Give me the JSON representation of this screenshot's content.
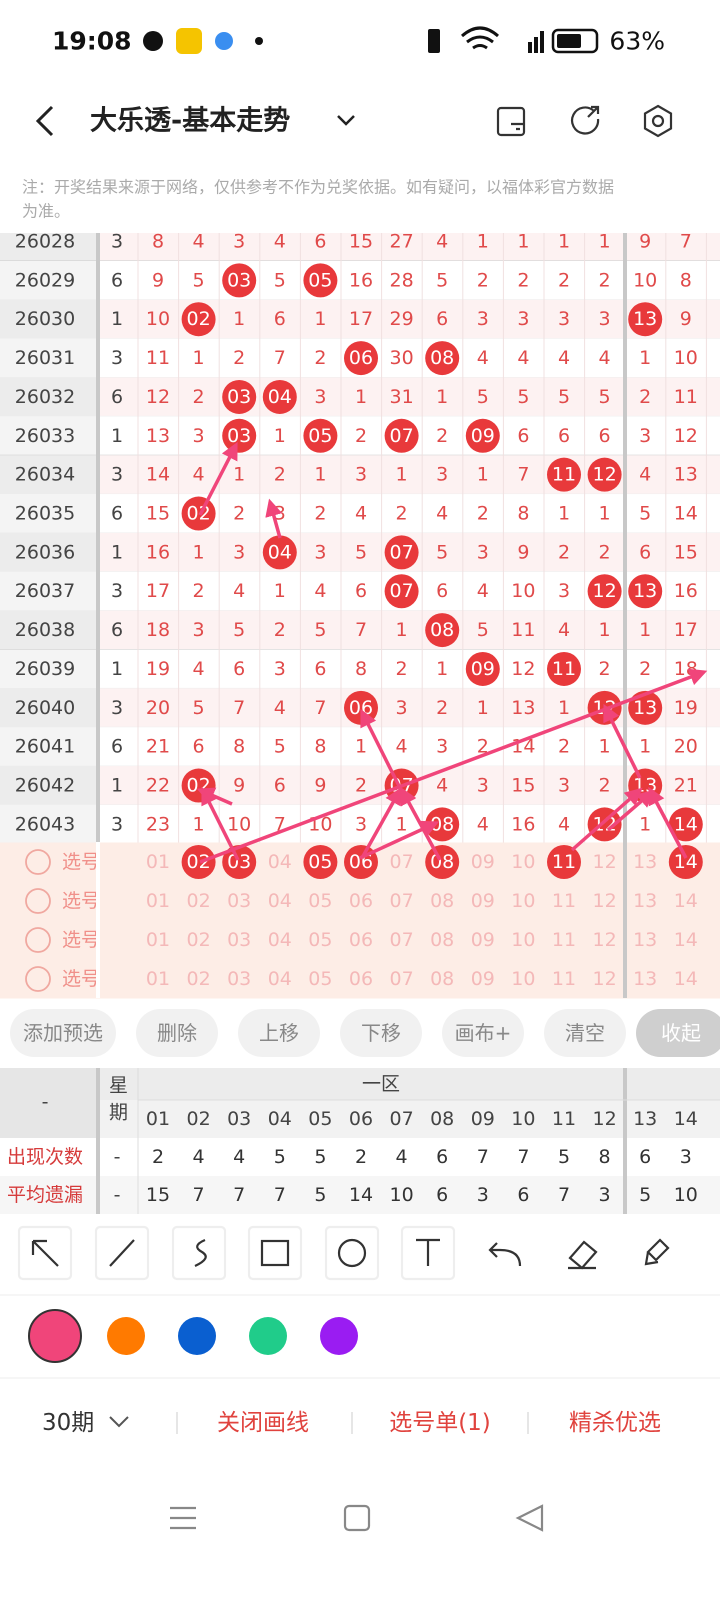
{
  "status_bar": {
    "time": "19:08",
    "battery": "63%"
  },
  "header": {
    "title": "大乐透-基本走势"
  },
  "notice": [
    "注：开奖结果来源于网络，仅供参考不作为兑奖依据。如有疑问，以福体彩官方数据",
    "为准。"
  ],
  "trend_table": {
    "rows": [
      {
        "issue": "26028",
        "weekday": "3",
        "cells": [
          "8",
          "4",
          "3",
          "4",
          "6",
          "15",
          "27",
          "4",
          "1",
          "1",
          "1",
          "1",
          "9",
          "7"
        ]
      },
      {
        "issue": "26029",
        "weekday": "6",
        "cells": [
          "9",
          "5",
          {
            "ball": "03"
          },
          "5",
          {
            "ball": "05"
          },
          "16",
          "28",
          "5",
          "2",
          "2",
          "2",
          "2",
          "10",
          "8"
        ]
      },
      {
        "issue": "26030",
        "weekday": "1",
        "cells": [
          "10",
          {
            "ball": "02"
          },
          "1",
          "6",
          "1",
          "17",
          "29",
          "6",
          "3",
          "3",
          "3",
          "3",
          {
            "ball": "13"
          },
          "9"
        ]
      },
      {
        "issue": "26031",
        "weekday": "3",
        "cells": [
          "11",
          "1",
          "2",
          "7",
          "2",
          {
            "ball": "06"
          },
          "30",
          {
            "ball": "08"
          },
          "4",
          "4",
          "4",
          "4",
          "1",
          "10"
        ]
      },
      {
        "issue": "26032",
        "weekday": "6",
        "cells": [
          "12",
          "2",
          {
            "ball": "03"
          },
          {
            "ball": "04"
          },
          "3",
          "1",
          "31",
          "1",
          "5",
          "5",
          "5",
          "5",
          "2",
          "11"
        ]
      },
      {
        "issue": "26033",
        "weekday": "1",
        "cells": [
          "13",
          "3",
          {
            "ball": "03"
          },
          "1",
          {
            "ball": "05"
          },
          "2",
          {
            "ball": "07"
          },
          "2",
          {
            "ball": "09"
          },
          "6",
          "6",
          "6",
          "3",
          "12"
        ]
      },
      {
        "issue": "26034",
        "weekday": "3",
        "cells": [
          "14",
          "4",
          "1",
          "2",
          "1",
          "3",
          "1",
          "3",
          "1",
          "7",
          {
            "ball": "11"
          },
          {
            "ball": "12"
          },
          "4",
          "13"
        ]
      },
      {
        "issue": "26035",
        "weekday": "6",
        "cells": [
          "15",
          {
            "ball": "02"
          },
          "2",
          "3",
          "2",
          "4",
          "2",
          "4",
          "2",
          "8",
          "1",
          "1",
          "5",
          "14"
        ]
      },
      {
        "issue": "26036",
        "weekday": "1",
        "cells": [
          "16",
          "1",
          "3",
          {
            "ball": "04"
          },
          "3",
          "5",
          {
            "ball": "07"
          },
          "5",
          "3",
          "9",
          "2",
          "2",
          "6",
          "15"
        ]
      },
      {
        "issue": "26037",
        "weekday": "3",
        "cells": [
          "17",
          "2",
          "4",
          "1",
          "4",
          "6",
          {
            "ball": "07"
          },
          "6",
          "4",
          "10",
          "3",
          {
            "ball": "12"
          },
          {
            "ball": "13"
          },
          "16"
        ]
      },
      {
        "issue": "26038",
        "weekday": "6",
        "cells": [
          "18",
          "3",
          "5",
          "2",
          "5",
          "7",
          "1",
          {
            "ball": "08"
          },
          "5",
          "11",
          "4",
          "1",
          "1",
          "17"
        ]
      },
      {
        "issue": "26039",
        "weekday": "1",
        "cells": [
          "19",
          "4",
          "6",
          "3",
          "6",
          "8",
          "2",
          "1",
          {
            "ball": "09"
          },
          "12",
          {
            "ball": "11"
          },
          "2",
          "2",
          "18"
        ]
      },
      {
        "issue": "26040",
        "weekday": "3",
        "cells": [
          "20",
          "5",
          "7",
          "4",
          "7",
          {
            "ball": "06"
          },
          "3",
          "2",
          "1",
          "13",
          "1",
          {
            "ball": "12"
          },
          {
            "ball": "13"
          },
          "19"
        ]
      },
      {
        "issue": "26041",
        "weekday": "6",
        "cells": [
          "21",
          "6",
          "8",
          "5",
          "8",
          "1",
          "4",
          "3",
          "2",
          "14",
          "2",
          "1",
          "1",
          "20"
        ]
      },
      {
        "issue": "26042",
        "weekday": "1",
        "cells": [
          "22",
          {
            "ball": "02"
          },
          "9",
          "6",
          "9",
          "2",
          {
            "ball": "07"
          },
          "4",
          "3",
          "15",
          "3",
          "2",
          {
            "ball": "13"
          },
          "21"
        ]
      },
      {
        "issue": "26043",
        "weekday": "3",
        "cells": [
          "23",
          "1",
          "10",
          "7",
          "10",
          "3",
          "1",
          {
            "ball": "08"
          },
          "4",
          "16",
          "4",
          {
            "ball": "12"
          },
          "1",
          {
            "ball": "14"
          }
        ]
      }
    ]
  },
  "selection_rows": [
    {
      "label": "选号",
      "numbers": [
        "01",
        {
          "ball": "02"
        },
        {
          "ball": "03"
        },
        "04",
        {
          "ball": "05"
        },
        {
          "ball": "06"
        },
        "07",
        {
          "ball": "08"
        },
        "09",
        "10",
        {
          "ball": "11"
        },
        "12",
        "13",
        {
          "ball": "14"
        }
      ]
    },
    {
      "label": "选号",
      "numbers": [
        "01",
        "02",
        "03",
        "04",
        "05",
        "06",
        "07",
        "08",
        "09",
        "10",
        "11",
        "12",
        "13",
        "14"
      ]
    },
    {
      "label": "选号",
      "numbers": [
        "01",
        "02",
        "03",
        "04",
        "05",
        "06",
        "07",
        "08",
        "09",
        "10",
        "11",
        "12",
        "13",
        "14"
      ]
    },
    {
      "label": "选号",
      "numbers": [
        "01",
        "02",
        "03",
        "04",
        "05",
        "06",
        "07",
        "08",
        "09",
        "10",
        "11",
        "12",
        "13",
        "14"
      ]
    }
  ],
  "buttons": [
    "添加预选",
    "删除",
    "上移",
    "下移",
    "画布+",
    "清空",
    "收起"
  ],
  "stats_table": {
    "corner": "-",
    "weekday_header": "星期",
    "zone": "一区",
    "columns": [
      "01",
      "02",
      "03",
      "04",
      "05",
      "06",
      "07",
      "08",
      "09",
      "10",
      "11",
      "12",
      "13",
      "14"
    ],
    "rows": [
      {
        "label": "出现次数",
        "weekday": "-",
        "values": [
          2,
          4,
          4,
          5,
          5,
          2,
          4,
          6,
          7,
          7,
          5,
          8,
          6,
          3
        ]
      },
      {
        "label": "平均遗漏",
        "weekday": "-",
        "values": [
          15,
          7,
          7,
          7,
          5,
          14,
          10,
          6,
          3,
          6,
          7,
          3,
          5,
          10
        ]
      }
    ]
  },
  "bottom_bar": {
    "period": "30期",
    "actions": [
      "关闭画线",
      "选号单(1)",
      "精杀优选"
    ]
  }
}
